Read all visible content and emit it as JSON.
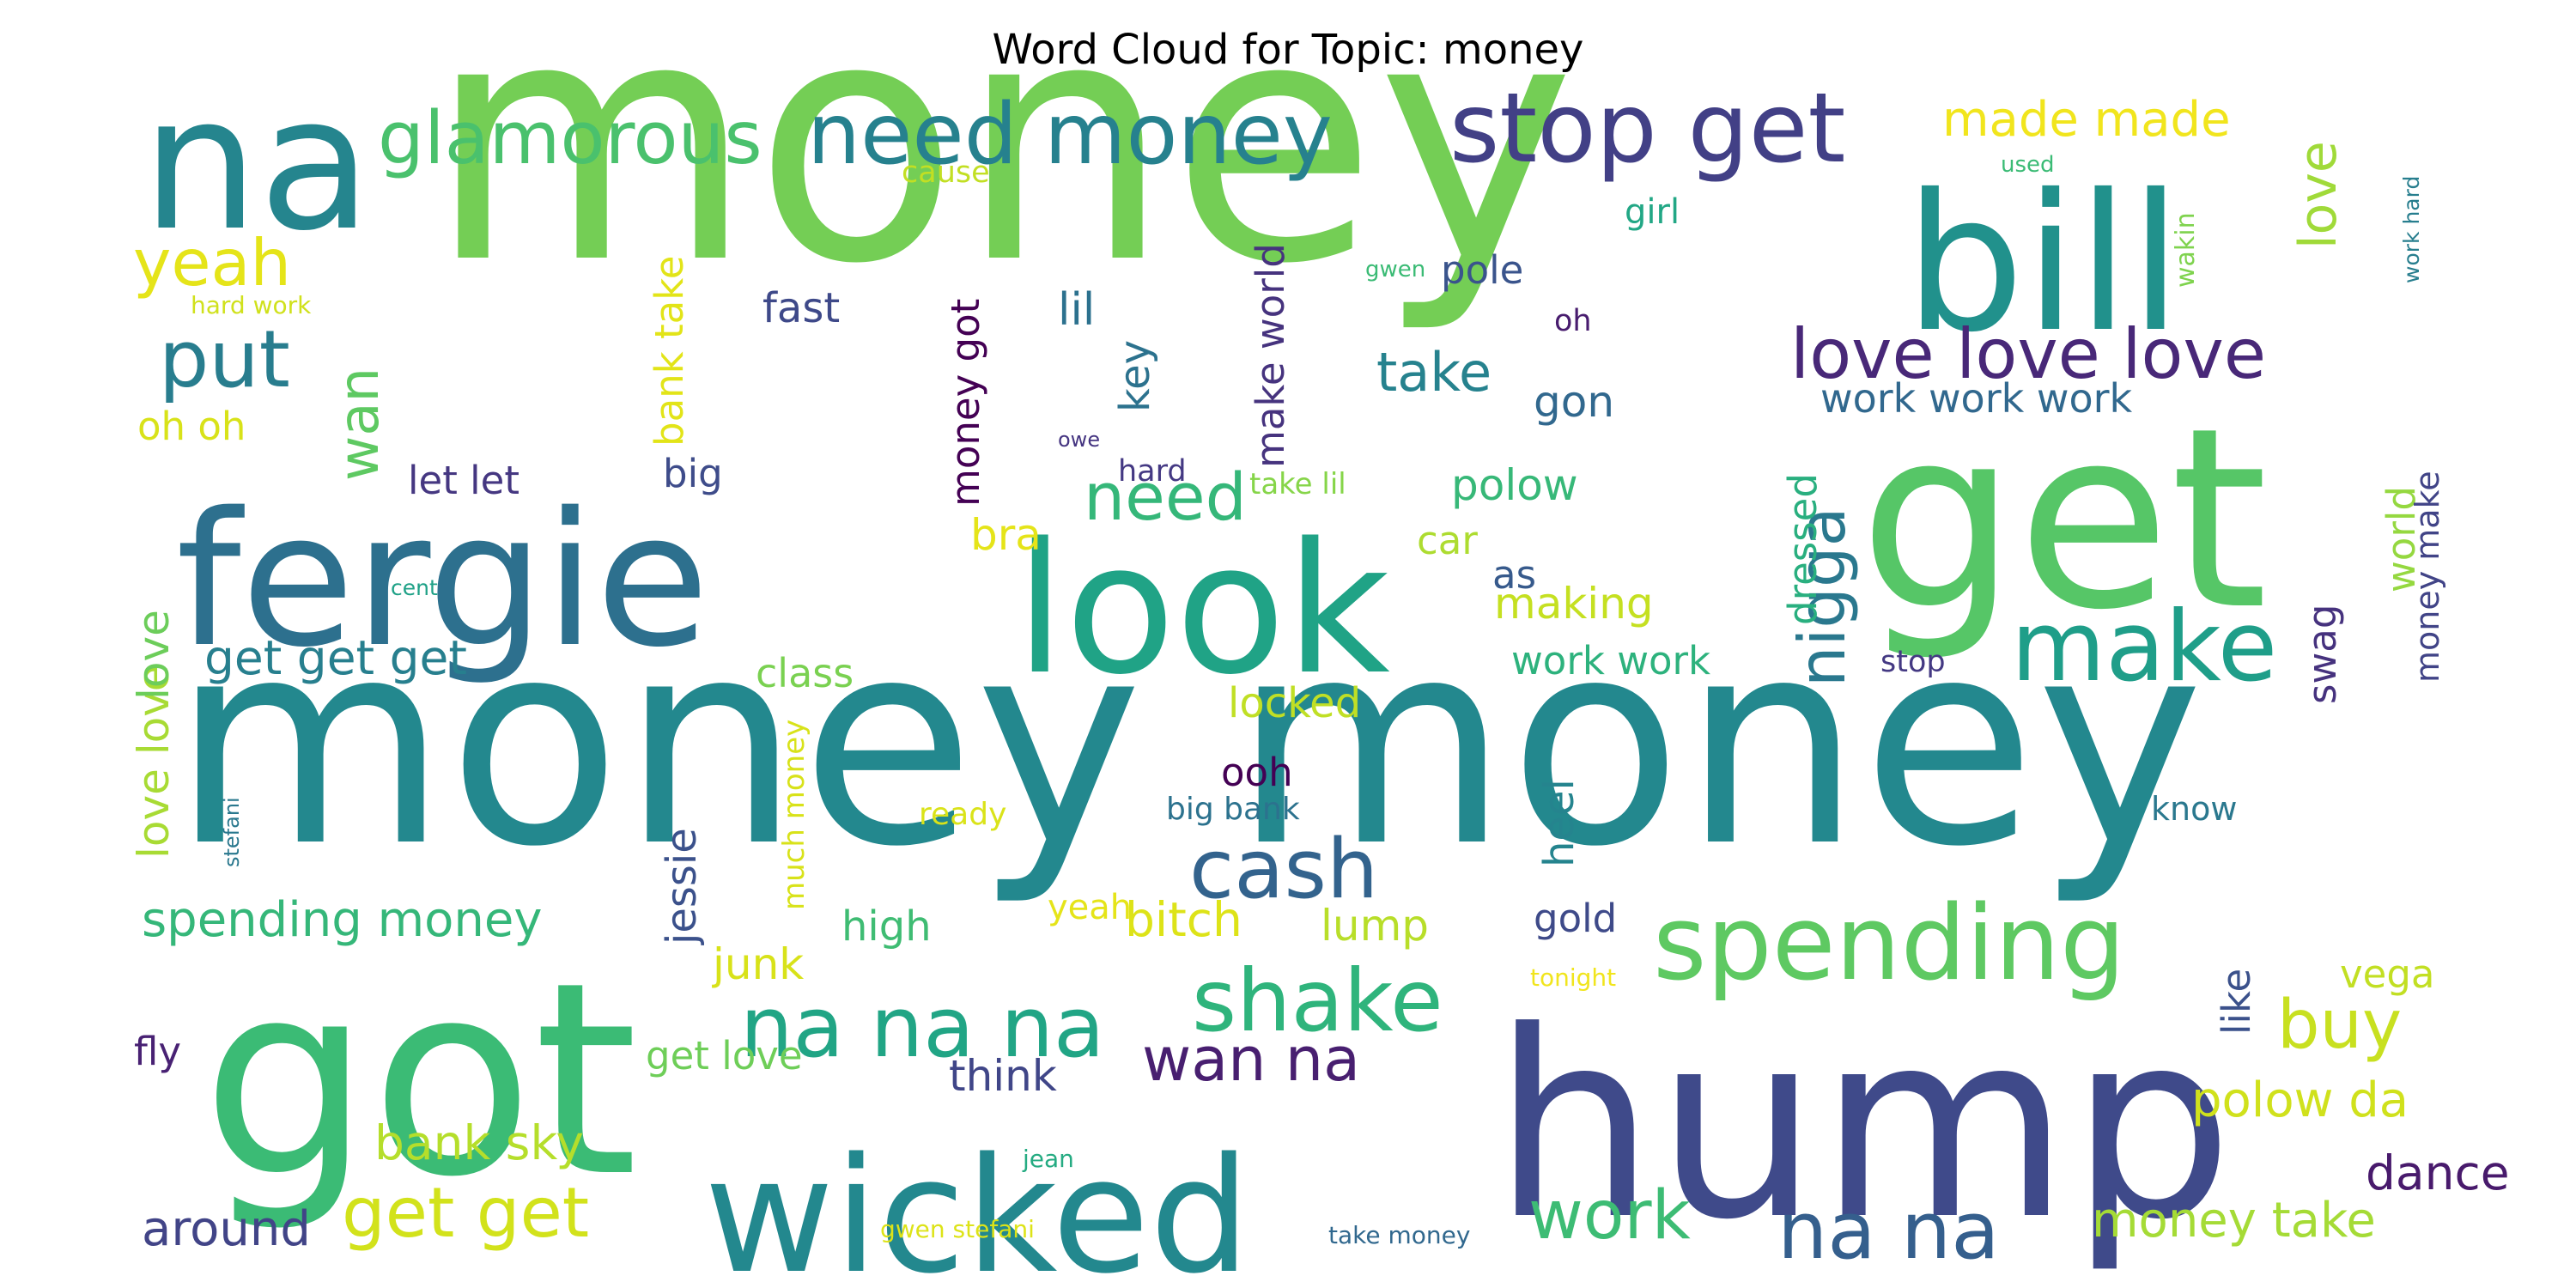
{
  "title": "Word Cloud for Topic: money",
  "words": [
    {
      "text": "money",
      "color": "#74ce55"
    },
    {
      "text": "money money",
      "color": "#23888e"
    },
    {
      "text": "got",
      "color": "#3bbb75"
    },
    {
      "text": "hump",
      "color": "#3f4a8a"
    },
    {
      "text": "get",
      "color": "#56c667"
    },
    {
      "text": "fergie",
      "color": "#2d708e"
    },
    {
      "text": "look",
      "color": "#20a386"
    },
    {
      "text": "wicked",
      "color": "#23888e"
    },
    {
      "text": "bill",
      "color": "#21918c"
    },
    {
      "text": "na",
      "color": "#25858e"
    },
    {
      "text": "stop get",
      "color": "#424086"
    },
    {
      "text": "need money",
      "color": "#26818e"
    },
    {
      "text": "glamorous",
      "color": "#4ac16d"
    },
    {
      "text": "spending",
      "color": "#5ec962"
    },
    {
      "text": "make",
      "color": "#1f9e89"
    },
    {
      "text": "cash",
      "color": "#33638d"
    },
    {
      "text": "shake",
      "color": "#2fb47c"
    },
    {
      "text": "na na na",
      "color": "#21a585"
    },
    {
      "text": "na na",
      "color": "#355f8d"
    },
    {
      "text": "put",
      "color": "#287d8e"
    },
    {
      "text": "love love love",
      "color": "#482878"
    },
    {
      "text": "get get",
      "color": "#d2e21b"
    },
    {
      "text": "work",
      "color": "#3dbc74"
    },
    {
      "text": "wan na",
      "color": "#481f70"
    },
    {
      "text": "yeah",
      "color": "#e5e419"
    },
    {
      "text": "nigga",
      "color": "#2a788e"
    },
    {
      "text": "buy",
      "color": "#c8e020"
    },
    {
      "text": "made made",
      "color": "#f1e51d"
    },
    {
      "text": "need",
      "color": "#35b779"
    },
    {
      "text": "take",
      "color": "#26828e"
    },
    {
      "text": "spending money",
      "color": "#35b779"
    },
    {
      "text": "get get get",
      "color": "#277f8e"
    },
    {
      "text": "wan",
      "color": "#5ec962"
    },
    {
      "text": "polow da",
      "color": "#d0e11c"
    },
    {
      "text": "money take",
      "color": "#a5db36"
    },
    {
      "text": "dance",
      "color": "#481a6c"
    },
    {
      "text": "love",
      "color": "#a0da39"
    },
    {
      "text": "around",
      "color": "#414487"
    },
    {
      "text": "bank sky",
      "color": "#b5de2b"
    },
    {
      "text": "work work work",
      "color": "#31688e"
    },
    {
      "text": "polow",
      "color": "#37b878"
    },
    {
      "text": "love love",
      "color": "#a8db34"
    },
    {
      "text": "love",
      "color": "#6ccd5a"
    },
    {
      "text": "money got",
      "color": "#440154"
    },
    {
      "text": "make world",
      "color": "#46337e"
    },
    {
      "text": "bank take",
      "color": "#e2e418"
    },
    {
      "text": "jessie",
      "color": "#3b518b"
    },
    {
      "text": "class",
      "color": "#7ad151"
    },
    {
      "text": "let let",
      "color": "#453781"
    },
    {
      "text": "work work",
      "color": "#2db27d"
    },
    {
      "text": "making",
      "color": "#c5e021"
    },
    {
      "text": "locked",
      "color": "#c0df25"
    },
    {
      "text": "yeah",
      "color": "#e5e419"
    },
    {
      "text": "fast",
      "color": "#3e4989"
    },
    {
      "text": "lil",
      "color": "#2c718e"
    },
    {
      "text": "key",
      "color": "#2c728e"
    },
    {
      "text": "gon",
      "color": "#31688e"
    },
    {
      "text": "pole",
      "color": "#3a548c"
    },
    {
      "text": "girl",
      "color": "#22a785"
    },
    {
      "text": "oh oh",
      "color": "#d8e219"
    },
    {
      "text": "big",
      "color": "#3e4c8a"
    },
    {
      "text": "bra",
      "color": "#e5e419"
    },
    {
      "text": "car",
      "color": "#addc30"
    },
    {
      "text": "as",
      "color": "#375a8c"
    },
    {
      "text": "ooh",
      "color": "#440154"
    },
    {
      "text": "heel",
      "color": "#25848e"
    },
    {
      "text": "gold",
      "color": "#3e4a89"
    },
    {
      "text": "bitch",
      "color": "#dde318"
    },
    {
      "text": "lump",
      "color": "#b8de29"
    },
    {
      "text": "high",
      "color": "#3fbc73"
    },
    {
      "text": "junk",
      "color": "#d8e219"
    },
    {
      "text": "think",
      "color": "#404688"
    },
    {
      "text": "get love",
      "color": "#6ece58"
    },
    {
      "text": "fly",
      "color": "#482173"
    },
    {
      "text": "much money",
      "color": "#d8e219"
    },
    {
      "text": "big bank",
      "color": "#2c728e"
    },
    {
      "text": "ready",
      "color": "#dae319"
    },
    {
      "text": "world",
      "color": "#95d840"
    },
    {
      "text": "money make",
      "color": "#414487"
    },
    {
      "text": "swag",
      "color": "#46327e"
    },
    {
      "text": "like",
      "color": "#3b518b"
    },
    {
      "text": "vega",
      "color": "#c2df23"
    },
    {
      "text": "dressed",
      "color": "#29af7f"
    },
    {
      "text": "know",
      "color": "#2a788e"
    },
    {
      "text": "stop",
      "color": "#443983"
    },
    {
      "text": "oh",
      "color": "#481c6e"
    },
    {
      "text": "take lil",
      "color": "#86d549"
    },
    {
      "text": "hard",
      "color": "#443983"
    },
    {
      "text": "owe",
      "color": "#453581"
    },
    {
      "text": "cause",
      "color": "#c2df23"
    },
    {
      "text": "hard work",
      "color": "#d0e11c"
    },
    {
      "text": "gwen",
      "color": "#3bbb75"
    },
    {
      "text": "used",
      "color": "#3bbb75"
    },
    {
      "text": "work hard",
      "color": "#277e8e"
    },
    {
      "text": "wakin",
      "color": "#7fd34e"
    },
    {
      "text": "cent",
      "color": "#1fa187"
    },
    {
      "text": "stefani",
      "color": "#2a788e"
    },
    {
      "text": "tonight",
      "color": "#f1e51d"
    },
    {
      "text": "jean",
      "color": "#25ab82"
    },
    {
      "text": "gwen stefani",
      "color": "#dde318"
    },
    {
      "text": "take money",
      "color": "#31688e"
    }
  ]
}
